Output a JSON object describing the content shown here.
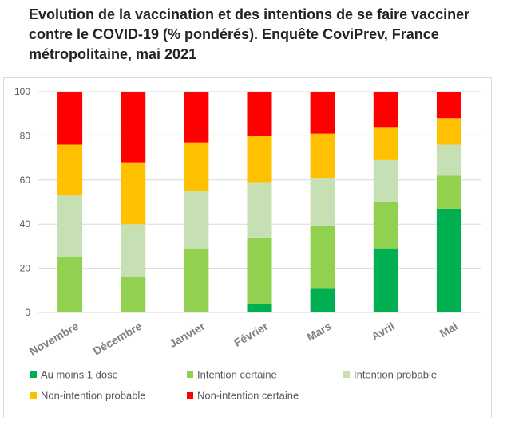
{
  "chart_data": {
    "type": "bar",
    "stacked": true,
    "title": "Evolution de la vaccination et des intentions de se faire vacciner contre le COVID-19 (% pondérés). Enquête CoviPrev, France métropolitaine, mai 2021",
    "xlabel": "",
    "ylabel": "",
    "ylim": [
      0,
      100
    ],
    "yticks": [
      0,
      20,
      40,
      60,
      80,
      100
    ],
    "grid": true,
    "legend": "bottom",
    "categories": [
      "Novembre",
      "Décembre",
      "Janvier",
      "Février",
      "Mars",
      "Avril",
      "Mai"
    ],
    "series": [
      {
        "name": "Au moins 1 dose",
        "color": "#00b050",
        "values": [
          0,
          0,
          0,
          4,
          11,
          29,
          47
        ]
      },
      {
        "name": "Intention certaine",
        "color": "#92d050",
        "values": [
          25,
          16,
          29,
          30,
          28,
          21,
          15
        ]
      },
      {
        "name": "Intention probable",
        "color": "#c6e0b4",
        "values": [
          28,
          24,
          26,
          25,
          22,
          19,
          14
        ]
      },
      {
        "name": "Non-intention probable",
        "color": "#ffc000",
        "values": [
          23,
          28,
          22,
          21,
          20,
          15,
          12
        ]
      },
      {
        "name": "Non-intention certaine",
        "color": "#ff0000",
        "values": [
          24,
          32,
          23,
          20,
          19,
          16,
          12
        ]
      }
    ]
  }
}
